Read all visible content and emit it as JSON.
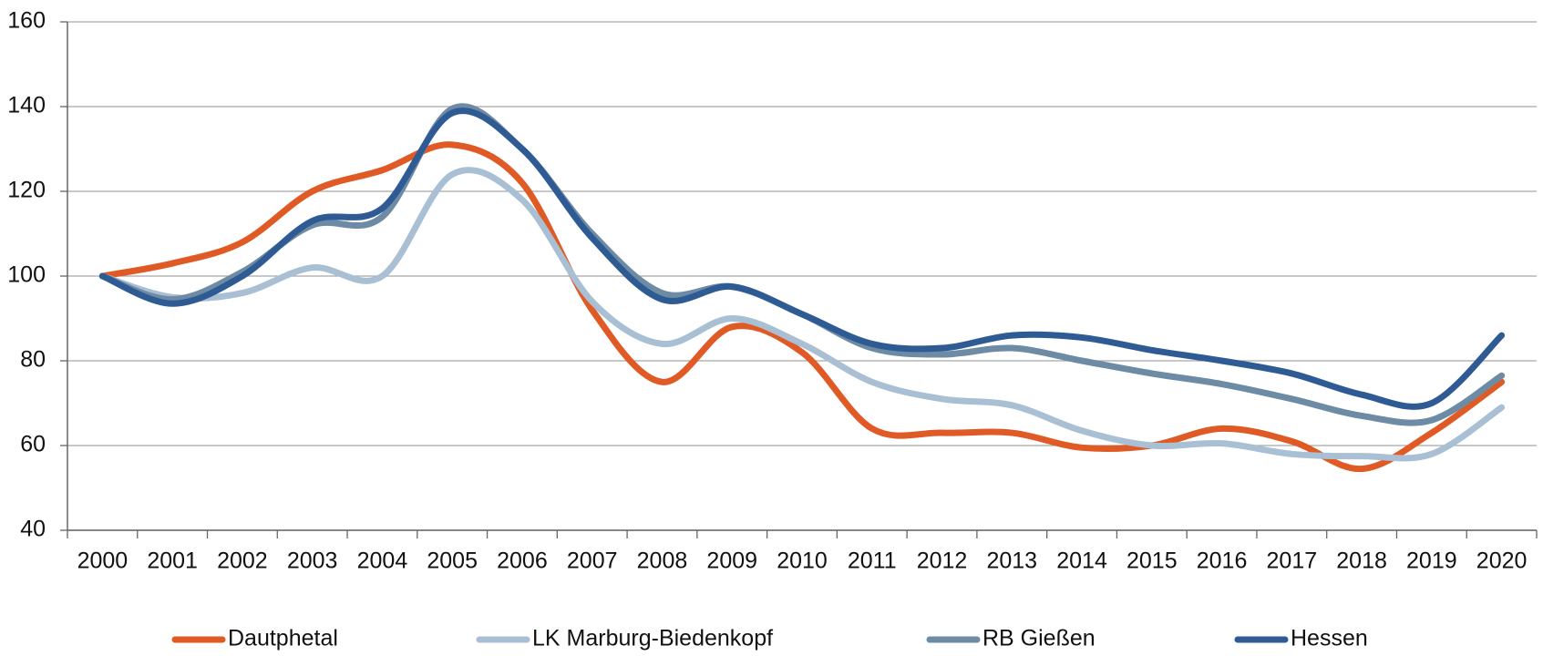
{
  "chart_data": {
    "type": "line",
    "categories": [
      "2000",
      "2001",
      "2002",
      "2003",
      "2004",
      "2005",
      "2006",
      "2007",
      "2008",
      "2009",
      "2010",
      "2011",
      "2012",
      "2013",
      "2014",
      "2015",
      "2016",
      "2017",
      "2018",
      "2019",
      "2020"
    ],
    "series": [
      {
        "name": "Dautphetal",
        "color": "#e05a26",
        "values": [
          100,
          103,
          108,
          120,
          125,
          131,
          122,
          92,
          75,
          88,
          82,
          64,
          63,
          63,
          59.5,
          60,
          64,
          61,
          54.5,
          63,
          75
        ]
      },
      {
        "name": "LK Marburg-Biedenkopf",
        "color": "#a9bfd3",
        "values": [
          100,
          95,
          96,
          102,
          100,
          124,
          118,
          94,
          84,
          90,
          84,
          75,
          71,
          69.5,
          63.5,
          60,
          60.5,
          58,
          57.5,
          58,
          69
        ]
      },
      {
        "name": "RB Gießen",
        "color": "#6d8ba4",
        "values": [
          100,
          94.5,
          101,
          112,
          114,
          139.5,
          130,
          110,
          96,
          97.5,
          91,
          83,
          81.5,
          83,
          80,
          77,
          74.5,
          71,
          67,
          66,
          76.5
        ]
      },
      {
        "name": "Hessen",
        "color": "#2f5b94",
        "values": [
          100,
          93.5,
          100,
          113,
          116,
          138.5,
          130,
          109,
          94.5,
          97.5,
          91,
          84,
          83,
          86,
          85.5,
          82.5,
          80,
          77,
          72,
          70,
          86
        ]
      }
    ],
    "ylim": [
      40,
      160
    ],
    "yticks": [
      40,
      60,
      80,
      100,
      120,
      140,
      160
    ],
    "grid": true,
    "legend": "bottom"
  }
}
